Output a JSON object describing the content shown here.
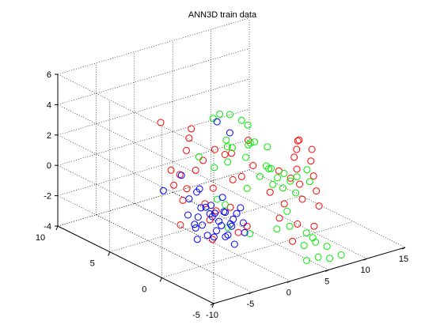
{
  "chart_data": {
    "type": "scatter",
    "projection": "3d",
    "title": "ANN3D train data",
    "xlim": [
      -10,
      15
    ],
    "ylim": [
      -5,
      10
    ],
    "zlim": [
      -4,
      6
    ],
    "xticks": [
      "-10",
      "-5",
      "0",
      "5",
      "10",
      "15"
    ],
    "yticks": [
      "-5",
      "0",
      "5",
      "10"
    ],
    "zticks": [
      "-4",
      "-2",
      "0",
      "2",
      "4",
      "6"
    ],
    "grid": true,
    "series": [
      {
        "color": "#ff0000",
        "points": [
          [
            -1,
            4,
            2.5
          ],
          [
            1,
            3,
            1.8
          ],
          [
            2.5,
            2.5,
            1.5
          ],
          [
            0,
            5,
            1.2
          ],
          [
            -1.5,
            3,
            0.8
          ],
          [
            3,
            3.5,
            1.0
          ],
          [
            1.5,
            4.5,
            0.5
          ],
          [
            -2,
            5,
            0.2
          ],
          [
            2,
            2,
            0.0
          ],
          [
            -3,
            4,
            -0.3
          ],
          [
            4.5,
            3,
            -0.5
          ],
          [
            0.5,
            6,
            -0.8
          ],
          [
            -2.5,
            3.5,
            -1.2
          ],
          [
            1,
            1.5,
            -1.5
          ],
          [
            3.5,
            5,
            -1.8
          ],
          [
            -1,
            2,
            -2.2
          ],
          [
            -3.5,
            3,
            -2.5
          ],
          [
            2.5,
            1,
            -2.8
          ],
          [
            0,
            0,
            -2.5
          ],
          [
            -2,
            1,
            -3.0
          ],
          [
            6,
            0,
            -1.5
          ],
          [
            7,
            -1,
            -1.0
          ],
          [
            8,
            0,
            -0.5
          ],
          [
            9,
            1,
            0.0
          ],
          [
            10,
            2,
            0.3
          ],
          [
            11,
            2.5,
            0.5
          ],
          [
            12,
            3,
            0.8
          ],
          [
            12.5,
            3.5,
            0.5
          ],
          [
            11.5,
            1.5,
            0.0
          ],
          [
            13,
            2.5,
            0.2
          ],
          [
            10.5,
            0.5,
            -0.5
          ],
          [
            9.5,
            -0.5,
            -1.0
          ],
          [
            8.5,
            -1.5,
            -1.5
          ],
          [
            5,
            -2,
            -2.0
          ],
          [
            6.5,
            -2.5,
            -2.2
          ],
          [
            4,
            -1,
            -1.8
          ],
          [
            7.5,
            0.5,
            -0.2
          ],
          [
            3,
            -3,
            -2.5
          ],
          [
            5.5,
            1,
            -1.0
          ],
          [
            -4,
            2,
            0.3
          ],
          [
            -3,
            1,
            -0.5
          ],
          [
            4,
            2,
            2.3
          ],
          [
            -2,
            6,
            3.0
          ],
          [
            2,
            6,
            2.0
          ],
          [
            0.5,
            2.5,
            -2.0
          ],
          [
            6,
            3,
            0.0
          ],
          [
            8,
            2,
            -0.3
          ]
        ]
      },
      {
        "color": "#00ee00",
        "points": [
          [
            3,
            4,
            3.5
          ],
          [
            4.5,
            3,
            3.2
          ],
          [
            5,
            4.5,
            3.0
          ],
          [
            3.5,
            5,
            2.8
          ],
          [
            6,
            3.5,
            2.5
          ],
          [
            2.5,
            3,
            2.2
          ],
          [
            4,
            2,
            2.0
          ],
          [
            5.5,
            2.5,
            1.8
          ],
          [
            3,
            1.5,
            1.5
          ],
          [
            6.5,
            2,
            1.5
          ],
          [
            4,
            4,
            1.2
          ],
          [
            2,
            2.5,
            1.0
          ],
          [
            5,
            1,
            0.8
          ],
          [
            3.5,
            0.5,
            0.5
          ],
          [
            6,
            1.5,
            0.3
          ],
          [
            4.5,
            0,
            0.0
          ],
          [
            2.5,
            1,
            -0.3
          ],
          [
            7,
            2,
            0.0
          ],
          [
            8,
            1.5,
            -0.3
          ],
          [
            9,
            1,
            -0.5
          ],
          [
            10,
            0.5,
            -0.8
          ],
          [
            8.5,
            2.5,
            -1.0
          ],
          [
            9.5,
            2,
            -1.2
          ],
          [
            7.5,
            0,
            -1.0
          ],
          [
            6.5,
            0.5,
            -0.7
          ],
          [
            11,
            1.5,
            -0.5
          ],
          [
            5,
            -1,
            -1.5
          ],
          [
            4,
            -2,
            -2.0
          ],
          [
            3,
            -1.5,
            -2.2
          ],
          [
            5.5,
            -2.5,
            -2.5
          ],
          [
            6,
            -3,
            -3.0
          ],
          [
            7,
            -2,
            -3.2
          ],
          [
            5,
            -4,
            -3.5
          ],
          [
            6.5,
            -4,
            -3.8
          ],
          [
            4.5,
            -3,
            -3.0
          ],
          [
            7.5,
            -3,
            -3.5
          ],
          [
            8,
            -4,
            -3.8
          ],
          [
            3.5,
            -4,
            -3.5
          ],
          [
            1.5,
            0,
            -2.8
          ],
          [
            2,
            3.5,
            -1.8
          ],
          [
            0,
            1,
            -2.5
          ],
          [
            1,
            2,
            -1.5
          ],
          [
            6,
            5,
            0.5
          ],
          [
            7,
            4,
            1.0
          ],
          [
            3,
            6,
            0.0
          ],
          [
            5,
            6,
            -1.0
          ]
        ]
      },
      {
        "color": "#0000ff",
        "points": [
          [
            4,
            5,
            2.5
          ],
          [
            5,
            4.5,
            1.8
          ],
          [
            -2,
            4,
            0.2
          ],
          [
            -1,
            3,
            -0.5
          ],
          [
            -3,
            5,
            -1.0
          ],
          [
            0,
            4,
            -1.2
          ],
          [
            -1.5,
            2.5,
            -1.5
          ],
          [
            0.5,
            3,
            -1.8
          ],
          [
            -2.5,
            3,
            -2.0
          ],
          [
            1,
            2,
            -2.0
          ],
          [
            -0.5,
            1.5,
            -2.2
          ],
          [
            -1,
            2,
            -1.8
          ],
          [
            0,
            2.5,
            -2.3
          ],
          [
            0.5,
            1,
            -2.5
          ],
          [
            -1.5,
            1,
            -2.5
          ],
          [
            1.5,
            2.5,
            -2.2
          ],
          [
            -2,
            2,
            -2.4
          ],
          [
            -0.5,
            3.5,
            -2.6
          ],
          [
            0.5,
            2,
            -2.8
          ],
          [
            -1,
            0.5,
            -2.8
          ],
          [
            1,
            1.5,
            -2.6
          ],
          [
            -2,
            1.5,
            -2.9
          ],
          [
            0,
            1,
            -3.0
          ],
          [
            -1.5,
            3,
            -3.0
          ],
          [
            1,
            3,
            -2.4
          ],
          [
            2,
            1,
            -2.5
          ],
          [
            -3,
            2,
            -2.2
          ],
          [
            -4,
            1,
            -2.7
          ],
          [
            1.5,
            0.5,
            -2.9
          ],
          [
            2.5,
            2,
            -2.3
          ],
          [
            -0.5,
            0,
            -3.2
          ],
          [
            0.5,
            3.5,
            -2.1
          ],
          [
            -2.5,
            0.5,
            -2.6
          ],
          [
            2,
            3,
            -1.5
          ],
          [
            -1,
            4,
            -1.5
          ],
          [
            0,
            0.5,
            -1.8
          ],
          [
            3,
            2,
            -2.0
          ]
        ]
      }
    ]
  }
}
